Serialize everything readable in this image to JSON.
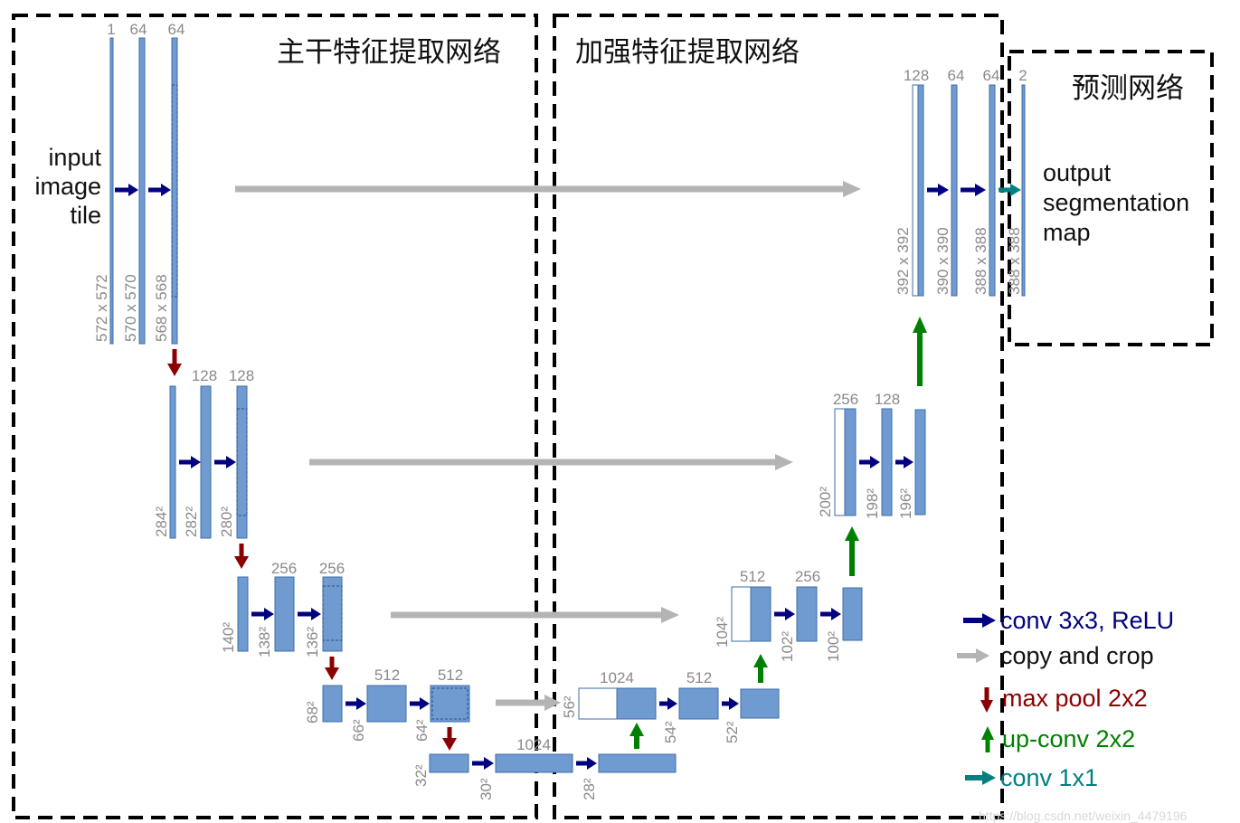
{
  "regions": {
    "backbone": "主干特征提取网络",
    "enhance": "加强特征提取网络",
    "predict": "预测网络"
  },
  "input_label": [
    "input",
    "image",
    "tile"
  ],
  "output_label": [
    "output",
    "segmentation",
    "map"
  ],
  "channels": {
    "l1_in": "1",
    "l1_a": "64",
    "l1_b": "64",
    "l2_a": "128",
    "l2_b": "128",
    "l3_a": "256",
    "l3_b": "256",
    "l4_a": "512",
    "l4_b": "512",
    "bottom": "1024",
    "u4_a": "1024",
    "u4_b": "512",
    "u3_a": "512",
    "u3_b": "256",
    "u2_a": "256",
    "u2_b": "128",
    "u1_a": "128",
    "u1_b": "64",
    "u1_c": "64",
    "out": "2"
  },
  "sizes": {
    "s572": "572 x 572",
    "s570": "570 x 570",
    "s568": "568 x 568",
    "s284": "284²",
    "s282": "282²",
    "s280": "280²",
    "s140": "140²",
    "s138": "138²",
    "s136": "136²",
    "s68": "68²",
    "s66": "66²",
    "s64": "64²",
    "s32": "32²",
    "s30": "30²",
    "s28": "28²",
    "s56": "56²",
    "s54": "54²",
    "s52": "52²",
    "s104": "104²",
    "s102": "102²",
    "s100": "100²",
    "s200": "200²",
    "s198": "198²",
    "s196": "196²",
    "s392": "392 x 392",
    "s390": "390 x 390",
    "s388": "388 x 388",
    "s388b": "388 x 388"
  },
  "legend": {
    "conv": "conv 3x3, ReLU",
    "copy": "copy and crop",
    "pool": "max pool 2x2",
    "upconv": "up-conv 2x2",
    "conv1x1": "conv 1x1"
  },
  "watermark": "https://blog.csdn.net/weixin_4479196",
  "colors": {
    "block": "#6f9bd1",
    "block_border": "#3d6ea8",
    "conv_arrow": "#000080",
    "copy_arrow": "#b4b4b4",
    "pool_arrow": "#8b0000",
    "upconv_arrow": "#008000",
    "conv1x1_arrow": "#008080",
    "dash_box": "#000000"
  }
}
